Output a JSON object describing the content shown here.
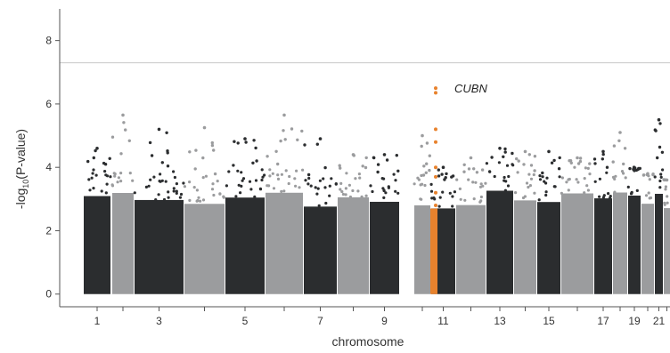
{
  "chart_data": {
    "type": "scatter",
    "xlabel": "chromosome",
    "ylabel_main": "-log",
    "ylabel_sub": "10",
    "ylabel_tail": "(P-value)",
    "ylim": [
      -0.4,
      9.0
    ],
    "yticks": [
      0,
      2,
      4,
      6,
      8
    ],
    "threshold": 7.3,
    "colors": {
      "dark": "#2b2d2f",
      "light": "#9b9c9e",
      "highlight": "#e8822d",
      "threshold": "#c8c8c8",
      "axis": "#555555"
    },
    "chromosomes": [
      {
        "chr": 1,
        "label": "1",
        "color": "dark",
        "max": 4.6
      },
      {
        "chr": 2,
        "label": "",
        "color": "light",
        "max": 5.65
      },
      {
        "chr": 3,
        "label": "3",
        "color": "dark",
        "max": 5.2
      },
      {
        "chr": 4,
        "label": "",
        "color": "light",
        "max": 5.25
      },
      {
        "chr": 5,
        "label": "5",
        "color": "dark",
        "max": 4.9
      },
      {
        "chr": 6,
        "label": "",
        "color": "light",
        "max": 5.65
      },
      {
        "chr": 7,
        "label": "7",
        "color": "dark",
        "max": 4.9
      },
      {
        "chr": 8,
        "label": "",
        "color": "light",
        "max": 4.4
      },
      {
        "chr": 9,
        "label": "9",
        "color": "dark",
        "max": 4.4
      },
      {
        "chr": 10,
        "label": "",
        "color": "light",
        "max": 5.0
      },
      {
        "chr": 11,
        "label": "11",
        "color": "dark",
        "max": 4.0
      },
      {
        "chr": 12,
        "label": "",
        "color": "light",
        "max": 4.3
      },
      {
        "chr": 13,
        "label": "13",
        "color": "dark",
        "max": 4.6
      },
      {
        "chr": 14,
        "label": "",
        "color": "light",
        "max": 4.5
      },
      {
        "chr": 15,
        "label": "15",
        "color": "dark",
        "max": 4.5
      },
      {
        "chr": 16,
        "label": "",
        "color": "light",
        "max": 4.3
      },
      {
        "chr": 17,
        "label": "17",
        "color": "dark",
        "max": 4.5
      },
      {
        "chr": 18,
        "label": "",
        "color": "light",
        "max": 5.1
      },
      {
        "chr": 19,
        "label": "19",
        "color": "dark",
        "max": 3.9
      },
      {
        "chr": 20,
        "label": "",
        "color": "light",
        "max": 3.8
      },
      {
        "chr": 21,
        "label": "21",
        "color": "dark",
        "max": 5.5
      },
      {
        "chr": 22,
        "label": "",
        "color": "light",
        "max": 3.6
      }
    ],
    "highlight": {
      "label": "CUBN",
      "chromosome": 10,
      "peak_values": [
        6.5,
        6.35,
        5.2,
        4.8,
        4.0,
        3.7,
        3.2,
        2.8
      ]
    }
  }
}
